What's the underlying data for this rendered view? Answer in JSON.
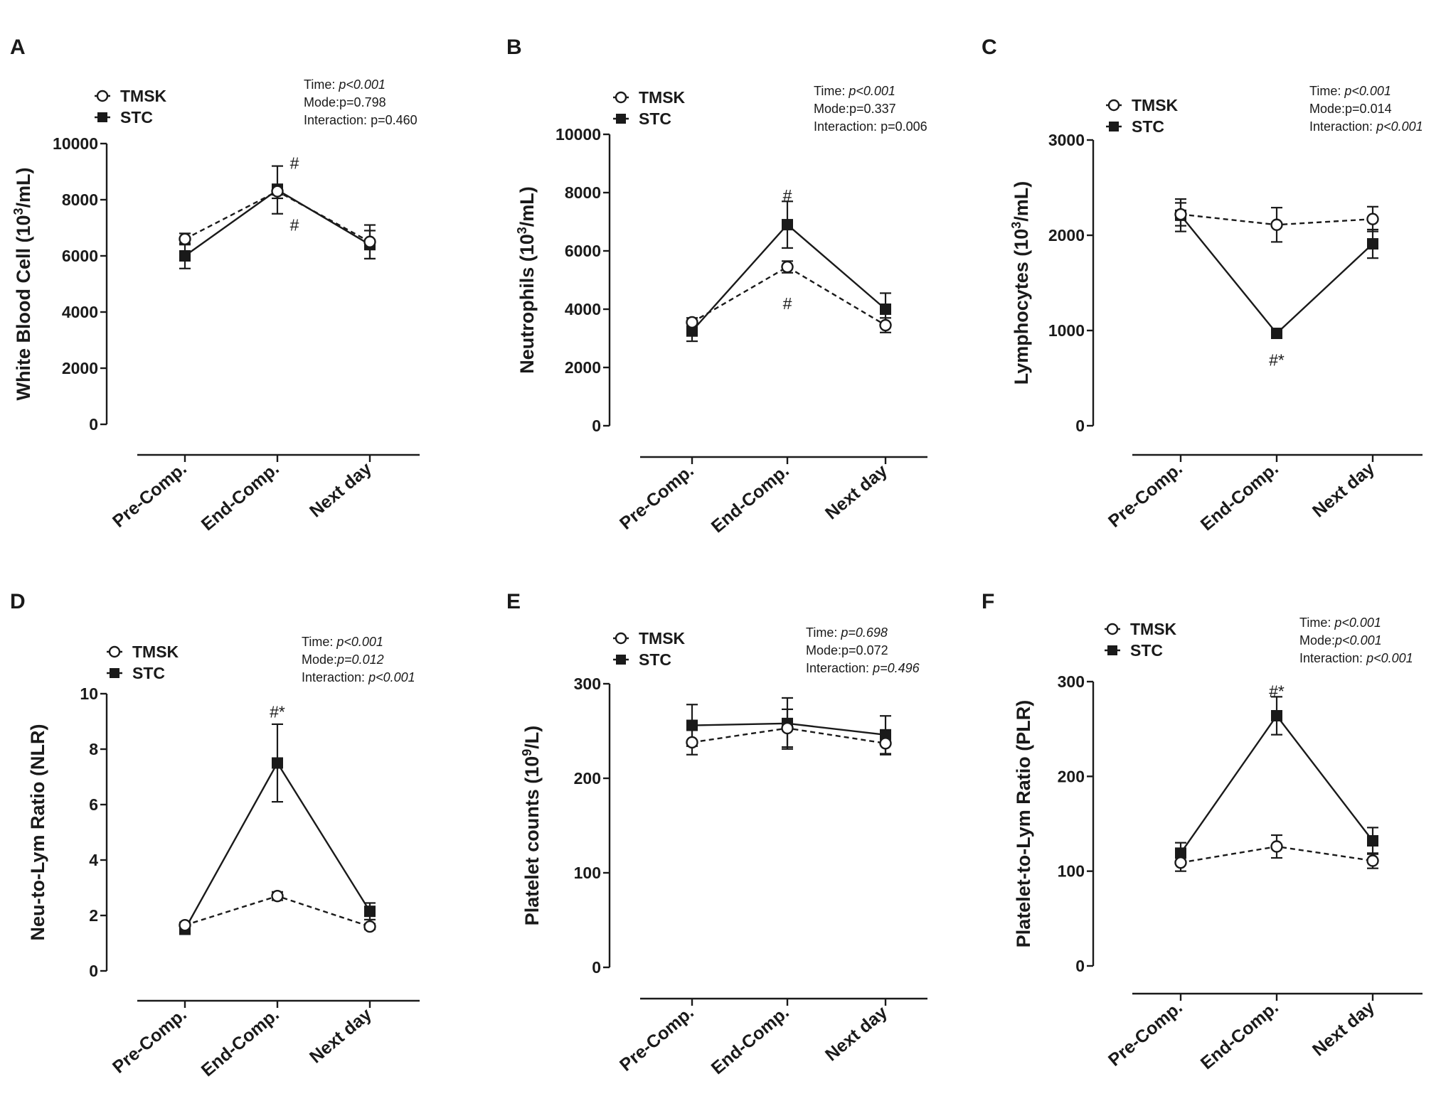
{
  "chart_data": [
    {
      "type": "line",
      "panel": "A",
      "ylabel": "White Blood Cell (10",
      "ylabel_sup": "3",
      "ylabel_tail": "/mL)",
      "ylim": [
        0,
        10000
      ],
      "yticks": [
        "0",
        "2000",
        "4000",
        "6000",
        "8000",
        "10000"
      ],
      "categories": [
        "Pre-Comp.",
        "End-Comp.",
        "Next day"
      ],
      "series": [
        {
          "name": "TMSK",
          "values": [
            6600,
            8300,
            6500
          ],
          "err": [
            200,
            250,
            600
          ]
        },
        {
          "name": "STC",
          "values": [
            6000,
            8350,
            6400
          ],
          "err": [
            450,
            850,
            500
          ]
        }
      ],
      "stats": [
        {
          "label": "Time: ",
          "value": "p<0.001",
          "italic": true
        },
        {
          "label": "Mode:",
          "value": "p=0.798",
          "italic": false
        },
        {
          "label": "Interaction:  ",
          "value": "p=0.460",
          "italic": false
        }
      ],
      "annotations": [
        {
          "text": "#",
          "category": "End-Comp.",
          "value": 9300
        },
        {
          "text": "#",
          "category": "End-Comp.",
          "value": 7100
        }
      ]
    },
    {
      "type": "line",
      "panel": "B",
      "ylabel": "Neutrophils (10",
      "ylabel_sup": "3",
      "ylabel_tail": "/mL)",
      "ylim": [
        0,
        10000
      ],
      "yticks": [
        "0",
        "2000",
        "4000",
        "6000",
        "8000",
        "10000"
      ],
      "categories": [
        "Pre-Comp.",
        "End-Comp.",
        "Next day"
      ],
      "series": [
        {
          "name": "TMSK",
          "values": [
            3550,
            5450,
            3450
          ],
          "err": [
            150,
            200,
            250
          ]
        },
        {
          "name": "STC",
          "values": [
            3250,
            6900,
            4000
          ],
          "err": [
            350,
            800,
            550
          ]
        }
      ],
      "stats": [
        {
          "label": "Time: ",
          "value": "p<0.001",
          "italic": true
        },
        {
          "label": "Mode:",
          "value": "p=0.337",
          "italic": false
        },
        {
          "label": "Interaction:  ",
          "value": "p=0.006",
          "italic": false
        }
      ],
      "annotations": [
        {
          "text": "#",
          "category": "End-Comp.",
          "value": 7900
        },
        {
          "text": "#",
          "category": "End-Comp.",
          "value": 4200
        }
      ]
    },
    {
      "type": "line",
      "panel": "C",
      "ylabel": "Lymphocytes (10",
      "ylabel_sup": "3",
      "ylabel_tail": "/mL)",
      "ylim": [
        0,
        3000
      ],
      "yticks": [
        "0",
        "1000",
        "2000",
        "3000"
      ],
      "categories": [
        "Pre-Comp.",
        "End-Comp.",
        "Next day"
      ],
      "series": [
        {
          "name": "TMSK",
          "values": [
            2220,
            2110,
            2170
          ],
          "err": [
            120,
            180,
            130
          ]
        },
        {
          "name": "STC",
          "values": [
            2210,
            970,
            1910
          ],
          "err": [
            170,
            50,
            150
          ]
        }
      ],
      "stats": [
        {
          "label": "Time: ",
          "value": "p<0.001",
          "italic": true
        },
        {
          "label": "Mode:",
          "value": "p=0.014",
          "italic": false
        },
        {
          "label": "Interaction: ",
          "value": "p<0.001",
          "italic": true
        }
      ],
      "annotations": [
        {
          "text": "#*",
          "category": "End-Comp.",
          "value": 690
        }
      ]
    },
    {
      "type": "line",
      "panel": "D",
      "ylabel": "Neu-to-Lym Ratio (NLR)",
      "ylabel_sup": "",
      "ylabel_tail": "",
      "ylim": [
        0,
        10
      ],
      "yticks": [
        "0",
        "2",
        "4",
        "6",
        "8",
        "10"
      ],
      "categories": [
        "Pre-Comp.",
        "End-Comp.",
        "Next day"
      ],
      "series": [
        {
          "name": "TMSK",
          "values": [
            1.65,
            2.7,
            1.6
          ],
          "err": [
            0.1,
            0.15,
            0.1
          ]
        },
        {
          "name": "STC",
          "values": [
            1.5,
            7.5,
            2.15
          ],
          "err": [
            0.1,
            1.4,
            0.3
          ]
        }
      ],
      "stats": [
        {
          "label": "Time: ",
          "value": "p<0.001",
          "italic": true
        },
        {
          "label": "Mode:",
          "value": "p=0.012",
          "italic": true
        },
        {
          "label": "Interaction: ",
          "value": "p<0.001",
          "italic": true
        }
      ],
      "annotations": [
        {
          "text": "#*",
          "category": "End-Comp.",
          "value": 9.35
        }
      ]
    },
    {
      "type": "line",
      "panel": "E",
      "ylabel": "Platelet counts (10",
      "ylabel_sup": "9",
      "ylabel_tail": "/L)",
      "ylim": [
        0,
        300
      ],
      "yticks": [
        "0",
        "100",
        "200",
        "300"
      ],
      "categories": [
        "Pre-Comp.",
        "End-Comp.",
        "Next day"
      ],
      "series": [
        {
          "name": "TMSK",
          "values": [
            238,
            253,
            237
          ],
          "err": [
            13,
            20,
            12
          ]
        },
        {
          "name": "STC",
          "values": [
            256,
            258,
            246
          ],
          "err": [
            22,
            27,
            20
          ]
        }
      ],
      "stats": [
        {
          "label": "Time: ",
          "value": "p=0.698",
          "italic": true
        },
        {
          "label": "Mode:",
          "value": "p=0.072",
          "italic": false
        },
        {
          "label": "Interaction:  ",
          "value": "p=0.496",
          "italic": true
        }
      ],
      "annotations": []
    },
    {
      "type": "line",
      "panel": "F",
      "ylabel": "Platelet-to-Lym Ratio (PLR)",
      "ylabel_sup": "",
      "ylabel_tail": "",
      "ylim": [
        0,
        300
      ],
      "yticks": [
        "0",
        "100",
        "200",
        "300"
      ],
      "categories": [
        "Pre-Comp.",
        "End-Comp.",
        "Next day"
      ],
      "series": [
        {
          "name": "TMSK",
          "values": [
            109,
            126,
            111
          ],
          "err": [
            9,
            12,
            8
          ]
        },
        {
          "name": "STC",
          "values": [
            119,
            264,
            132
          ],
          "err": [
            11,
            20,
            14
          ]
        }
      ],
      "stats": [
        {
          "label": "Time: ",
          "value": "p<0.001",
          "italic": true
        },
        {
          "label": "Mode:",
          "value": "p<0.001",
          "italic": true
        },
        {
          "label": "Interaction: ",
          "value": "p<0.001",
          "italic": true
        }
      ],
      "annotations": [
        {
          "text": "#*",
          "category": "End-Comp.",
          "value": 290
        }
      ]
    }
  ]
}
